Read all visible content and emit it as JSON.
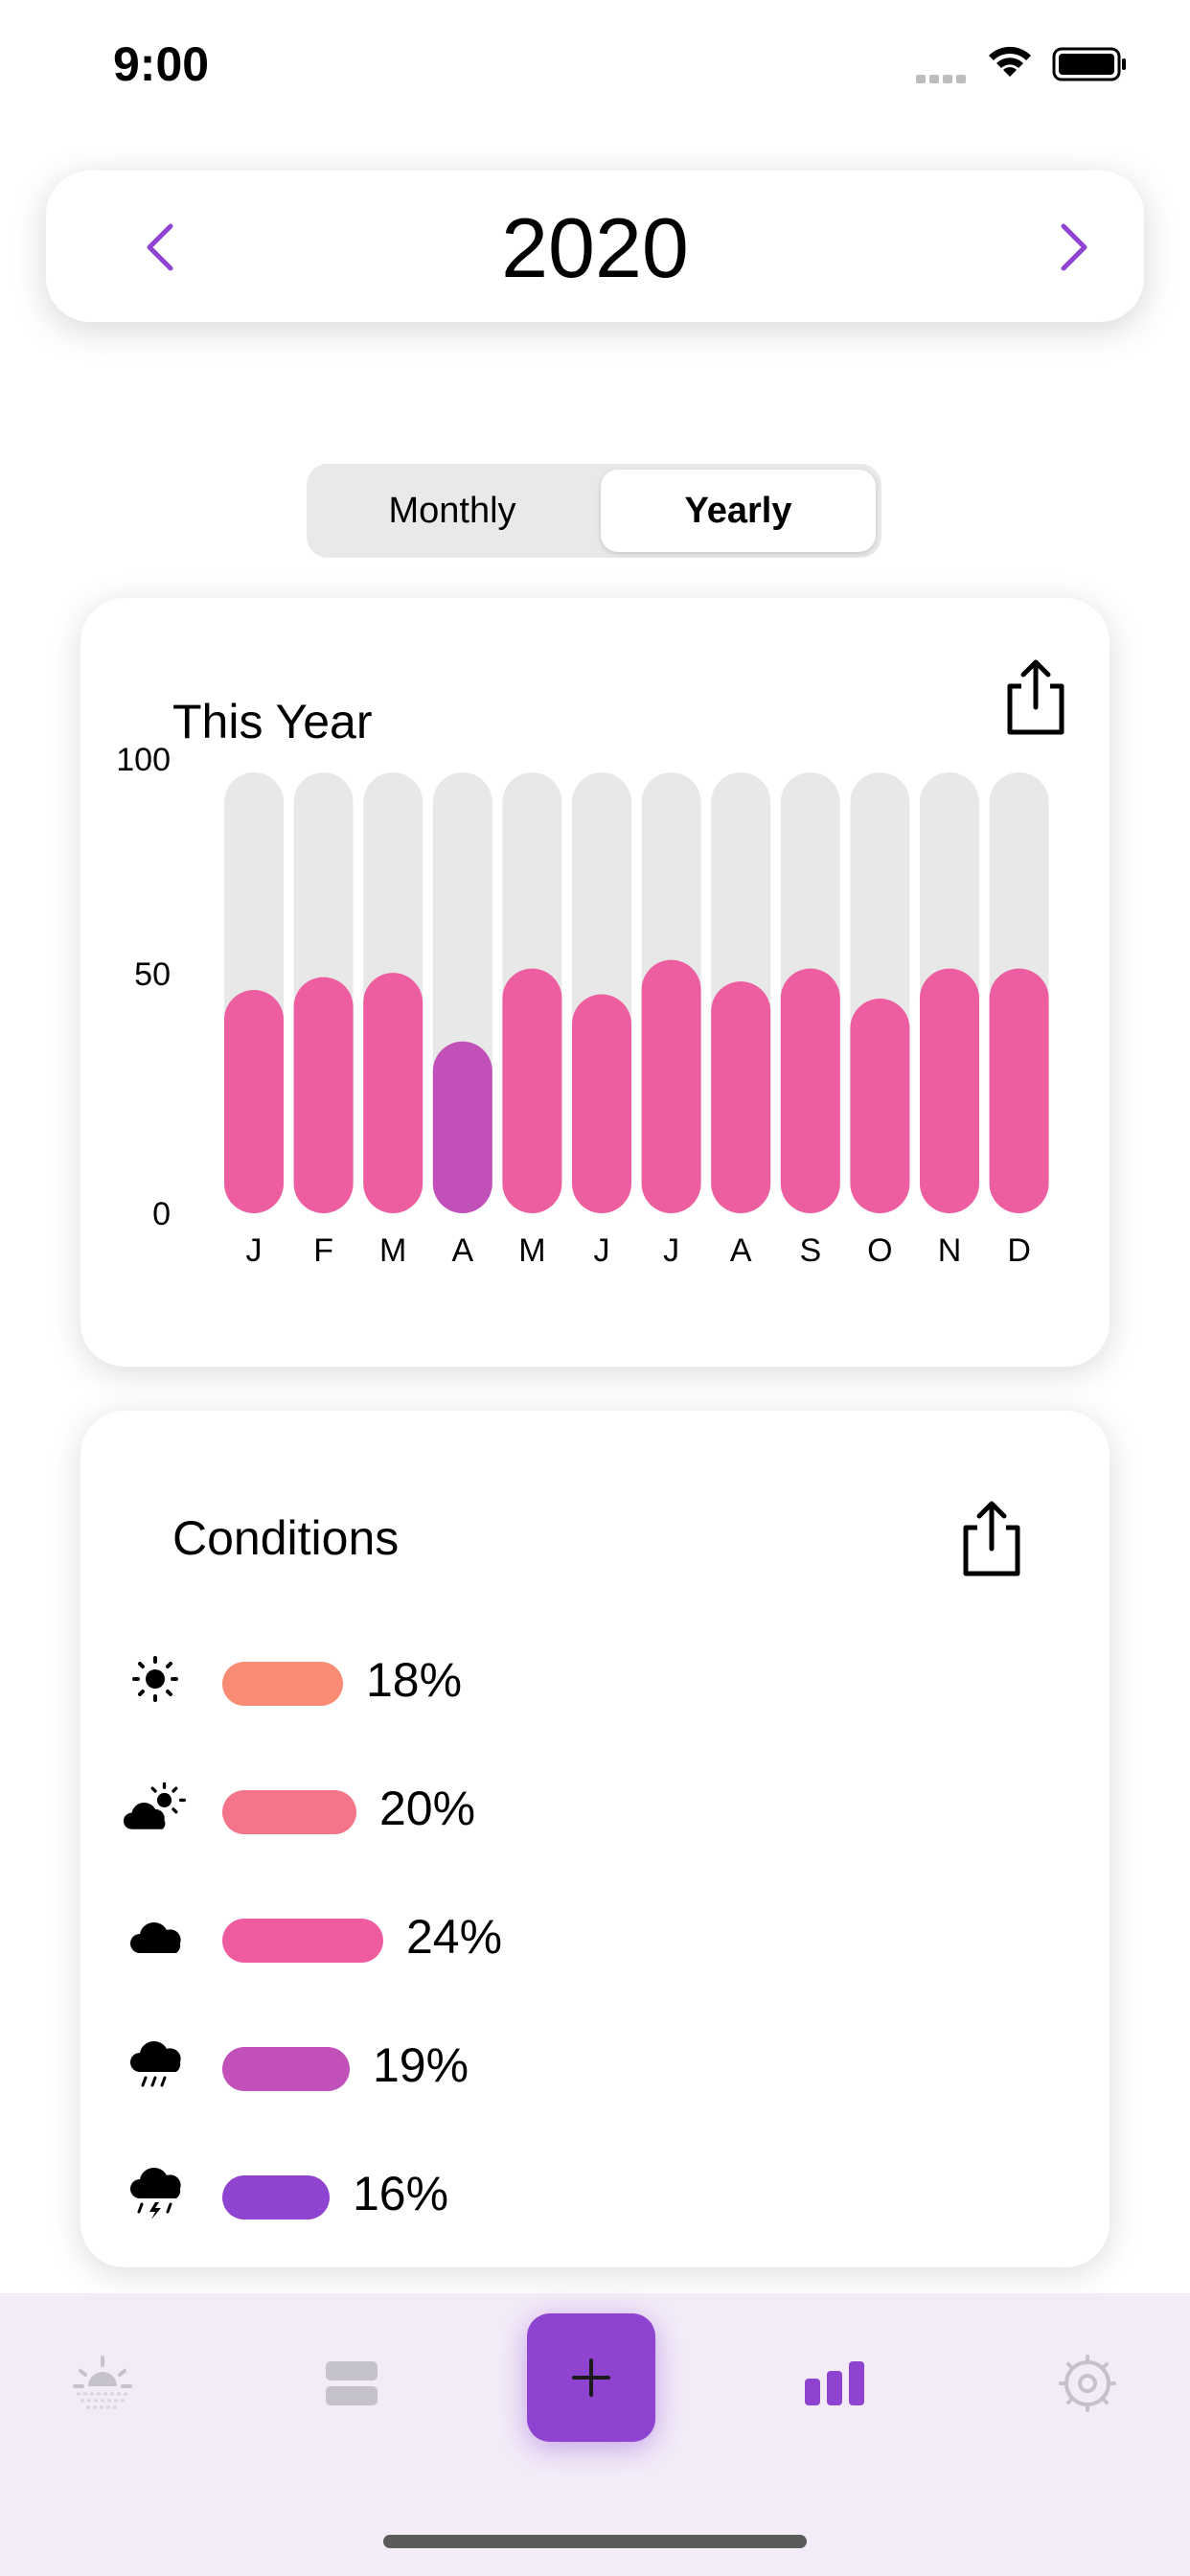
{
  "status": {
    "time": "9:00"
  },
  "year_selector": {
    "year": "2020"
  },
  "segment": {
    "monthly": "Monthly",
    "yearly": "Yearly",
    "selected": "Yearly"
  },
  "chart_card": {
    "title": "This Year"
  },
  "chart_data": {
    "type": "bar",
    "title": "This Year",
    "categories": [
      "J",
      "F",
      "M",
      "A",
      "M",
      "J",
      "J",
      "A",
      "S",
      "O",
      "N",
      "D"
    ],
    "values": [
      52,
      55,
      56,
      40,
      57,
      51,
      59,
      54,
      57,
      50,
      57,
      57
    ],
    "ylim": [
      0,
      100
    ],
    "yticks": [
      "100",
      "50",
      "0"
    ],
    "highlight_index": 3,
    "colors": {
      "bar": "#ec5ea0",
      "highlight": "#c150b8",
      "track": "#e8e8e8"
    }
  },
  "conditions_card": {
    "title": "Conditions",
    "items": [
      {
        "icon": "sun-icon",
        "value": 18,
        "label": "18%",
        "color": "#f98a73"
      },
      {
        "icon": "partly-cloudy-icon",
        "value": 20,
        "label": "20%",
        "color": "#f47489"
      },
      {
        "icon": "cloud-icon",
        "value": 24,
        "label": "24%",
        "color": "#ee5c9f"
      },
      {
        "icon": "rain-icon",
        "value": 19,
        "label": "19%",
        "color": "#c151b8"
      },
      {
        "icon": "thunderstorm-icon",
        "value": 16,
        "label": "16%",
        "color": "#8f45d2"
      }
    ]
  },
  "tabbar": {
    "accent": "#8e44d0",
    "items": [
      "sunrise-icon",
      "list-icon",
      "add-icon",
      "stats-icon",
      "settings-icon"
    ],
    "active": "stats-icon"
  }
}
